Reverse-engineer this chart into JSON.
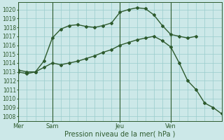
{
  "background_color": "#cce8e8",
  "grid_color": "#99cccc",
  "line_color": "#2d5a2d",
  "marker_color": "#2d5a2d",
  "xlabel": "Pression niveau de la mer( hPa )",
  "ylim": [
    1007.5,
    1020.8
  ],
  "yticks": [
    1008,
    1009,
    1010,
    1011,
    1012,
    1013,
    1014,
    1015,
    1016,
    1017,
    1018,
    1019,
    1020
  ],
  "xtick_labels": [
    "Mer",
    "Sam",
    "Jeu",
    "Ven"
  ],
  "xtick_positions": [
    0,
    4,
    12,
    18
  ],
  "vline_positions": [
    0,
    4,
    12,
    18
  ],
  "n_xgrid": 24,
  "line1_x": [
    0,
    1,
    2,
    3,
    4,
    5,
    6,
    7,
    8,
    9,
    10,
    11,
    12,
    13,
    14,
    15,
    16,
    17,
    18,
    19,
    20,
    21
  ],
  "line1_y": [
    1013.0,
    1012.8,
    1013.0,
    1014.2,
    1016.8,
    1017.8,
    1018.2,
    1018.3,
    1018.1,
    1018.0,
    1018.2,
    1018.5,
    1019.7,
    1020.0,
    1020.2,
    1020.1,
    1019.4,
    1018.2,
    1017.2,
    1017.0,
    1016.8,
    1017.0
  ],
  "line2_x": [
    0,
    1,
    2,
    3,
    4,
    5,
    6,
    7,
    8,
    9,
    10,
    11,
    12,
    13,
    14,
    15,
    16,
    17,
    18,
    19,
    20,
    21,
    22,
    23,
    24
  ],
  "line2_y": [
    1013.2,
    1013.0,
    1013.0,
    1013.5,
    1014.0,
    1013.8,
    1014.0,
    1014.2,
    1014.5,
    1014.8,
    1015.2,
    1015.5,
    1016.0,
    1016.3,
    1016.6,
    1016.8,
    1017.0,
    1016.5,
    1015.8,
    1014.0,
    1012.0,
    1011.0,
    1009.5,
    1009.0,
    1008.3
  ],
  "xlim": [
    0,
    24
  ]
}
